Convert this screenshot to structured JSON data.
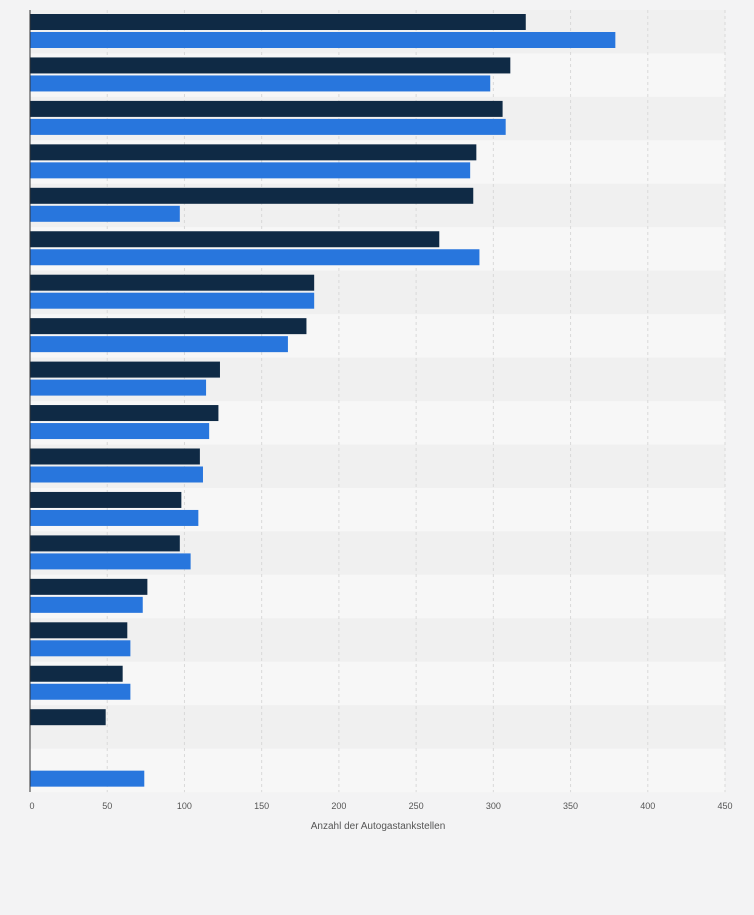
{
  "chart_data": {
    "type": "bar",
    "orientation": "horizontal",
    "xlabel": "Anzahl der Autogastankstellen",
    "xlim": [
      0,
      450
    ],
    "xticks": [
      0,
      50,
      100,
      150,
      200,
      250,
      300,
      350,
      400,
      450
    ],
    "grid": true,
    "categories": [
      "",
      "",
      "",
      "",
      "",
      "",
      "",
      "",
      "",
      "",
      "",
      "",
      "",
      "",
      "",
      "",
      "",
      ""
    ],
    "series": [
      {
        "color": "#0f2a45",
        "values": [
          321,
          311,
          306,
          289,
          287,
          265,
          184,
          179,
          123,
          122,
          110,
          98,
          97,
          76,
          63,
          60,
          49,
          null
        ]
      },
      {
        "color": "#2876dd",
        "values": [
          379,
          298,
          308,
          285,
          97,
          291,
          184,
          167,
          114,
          116,
          112,
          109,
          104,
          73,
          65,
          65,
          null,
          74
        ]
      }
    ]
  },
  "colors": {
    "background": "#f3f3f4",
    "band_light": "#f7f7f7",
    "band_dark": "#f0f0f0",
    "grid": "#d9d9d9",
    "axis": "#333333",
    "tick_text": "#555555"
  }
}
